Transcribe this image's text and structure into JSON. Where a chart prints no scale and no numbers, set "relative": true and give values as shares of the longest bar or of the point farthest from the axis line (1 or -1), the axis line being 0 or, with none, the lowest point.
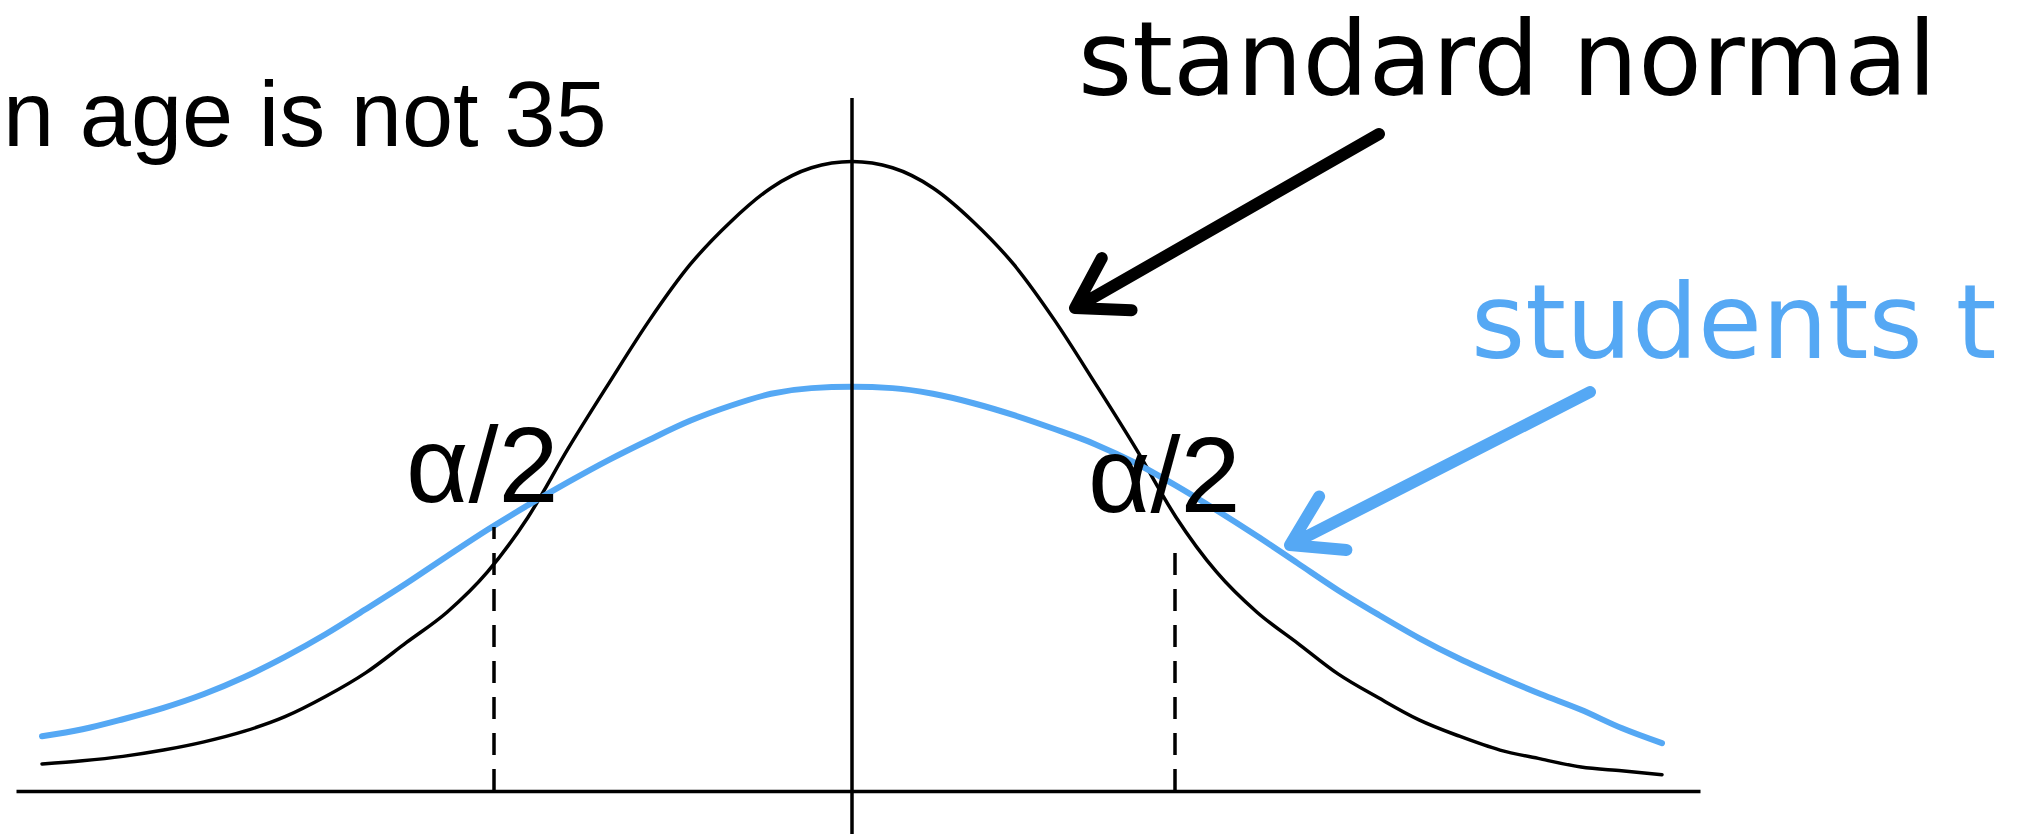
{
  "chart_data": {
    "type": "line",
    "relative": true,
    "annotations": [
      "n age is not 35",
      "α/2",
      "α/2"
    ],
    "categories": [
      null,
      null,
      null,
      null,
      null,
      null,
      null,
      null,
      null,
      null,
      null,
      null,
      null,
      null,
      null,
      null,
      null,
      null,
      null,
      null,
      null,
      null,
      null,
      null,
      null,
      null,
      null,
      null,
      null,
      null,
      null,
      null,
      null,
      null,
      null,
      null,
      null,
      null,
      null,
      null,
      null
    ],
    "series": [
      {
        "name": "standard normal",
        "color": "#000000",
        "values": [
          0.043,
          0.048,
          0.055,
          0.065,
          0.078,
          0.095,
          0.118,
          0.15,
          0.188,
          0.236,
          0.284,
          0.348,
          0.435,
          0.545,
          0.648,
          0.748,
          0.836,
          0.904,
          0.958,
          0.99,
          1.0,
          0.99,
          0.958,
          0.904,
          0.836,
          0.748,
          0.648,
          0.545,
          0.435,
          0.348,
          0.284,
          0.235,
          0.186,
          0.148,
          0.113,
          0.087,
          0.065,
          0.051,
          0.038,
          0.032,
          0.026
        ]
      },
      {
        "name": "students t",
        "color": "#55a8f4",
        "values": [
          0.087,
          0.098,
          0.114,
          0.132,
          0.154,
          0.181,
          0.213,
          0.249,
          0.289,
          0.33,
          0.373,
          0.415,
          0.454,
          0.491,
          0.526,
          0.558,
          0.588,
          0.612,
          0.631,
          0.64,
          0.642,
          0.64,
          0.631,
          0.616,
          0.597,
          0.575,
          0.551,
          0.521,
          0.485,
          0.446,
          0.405,
          0.362,
          0.319,
          0.28,
          0.243,
          0.21,
          0.181,
          0.154,
          0.129,
          0.1,
          0.076
        ]
      }
    ]
  }
}
